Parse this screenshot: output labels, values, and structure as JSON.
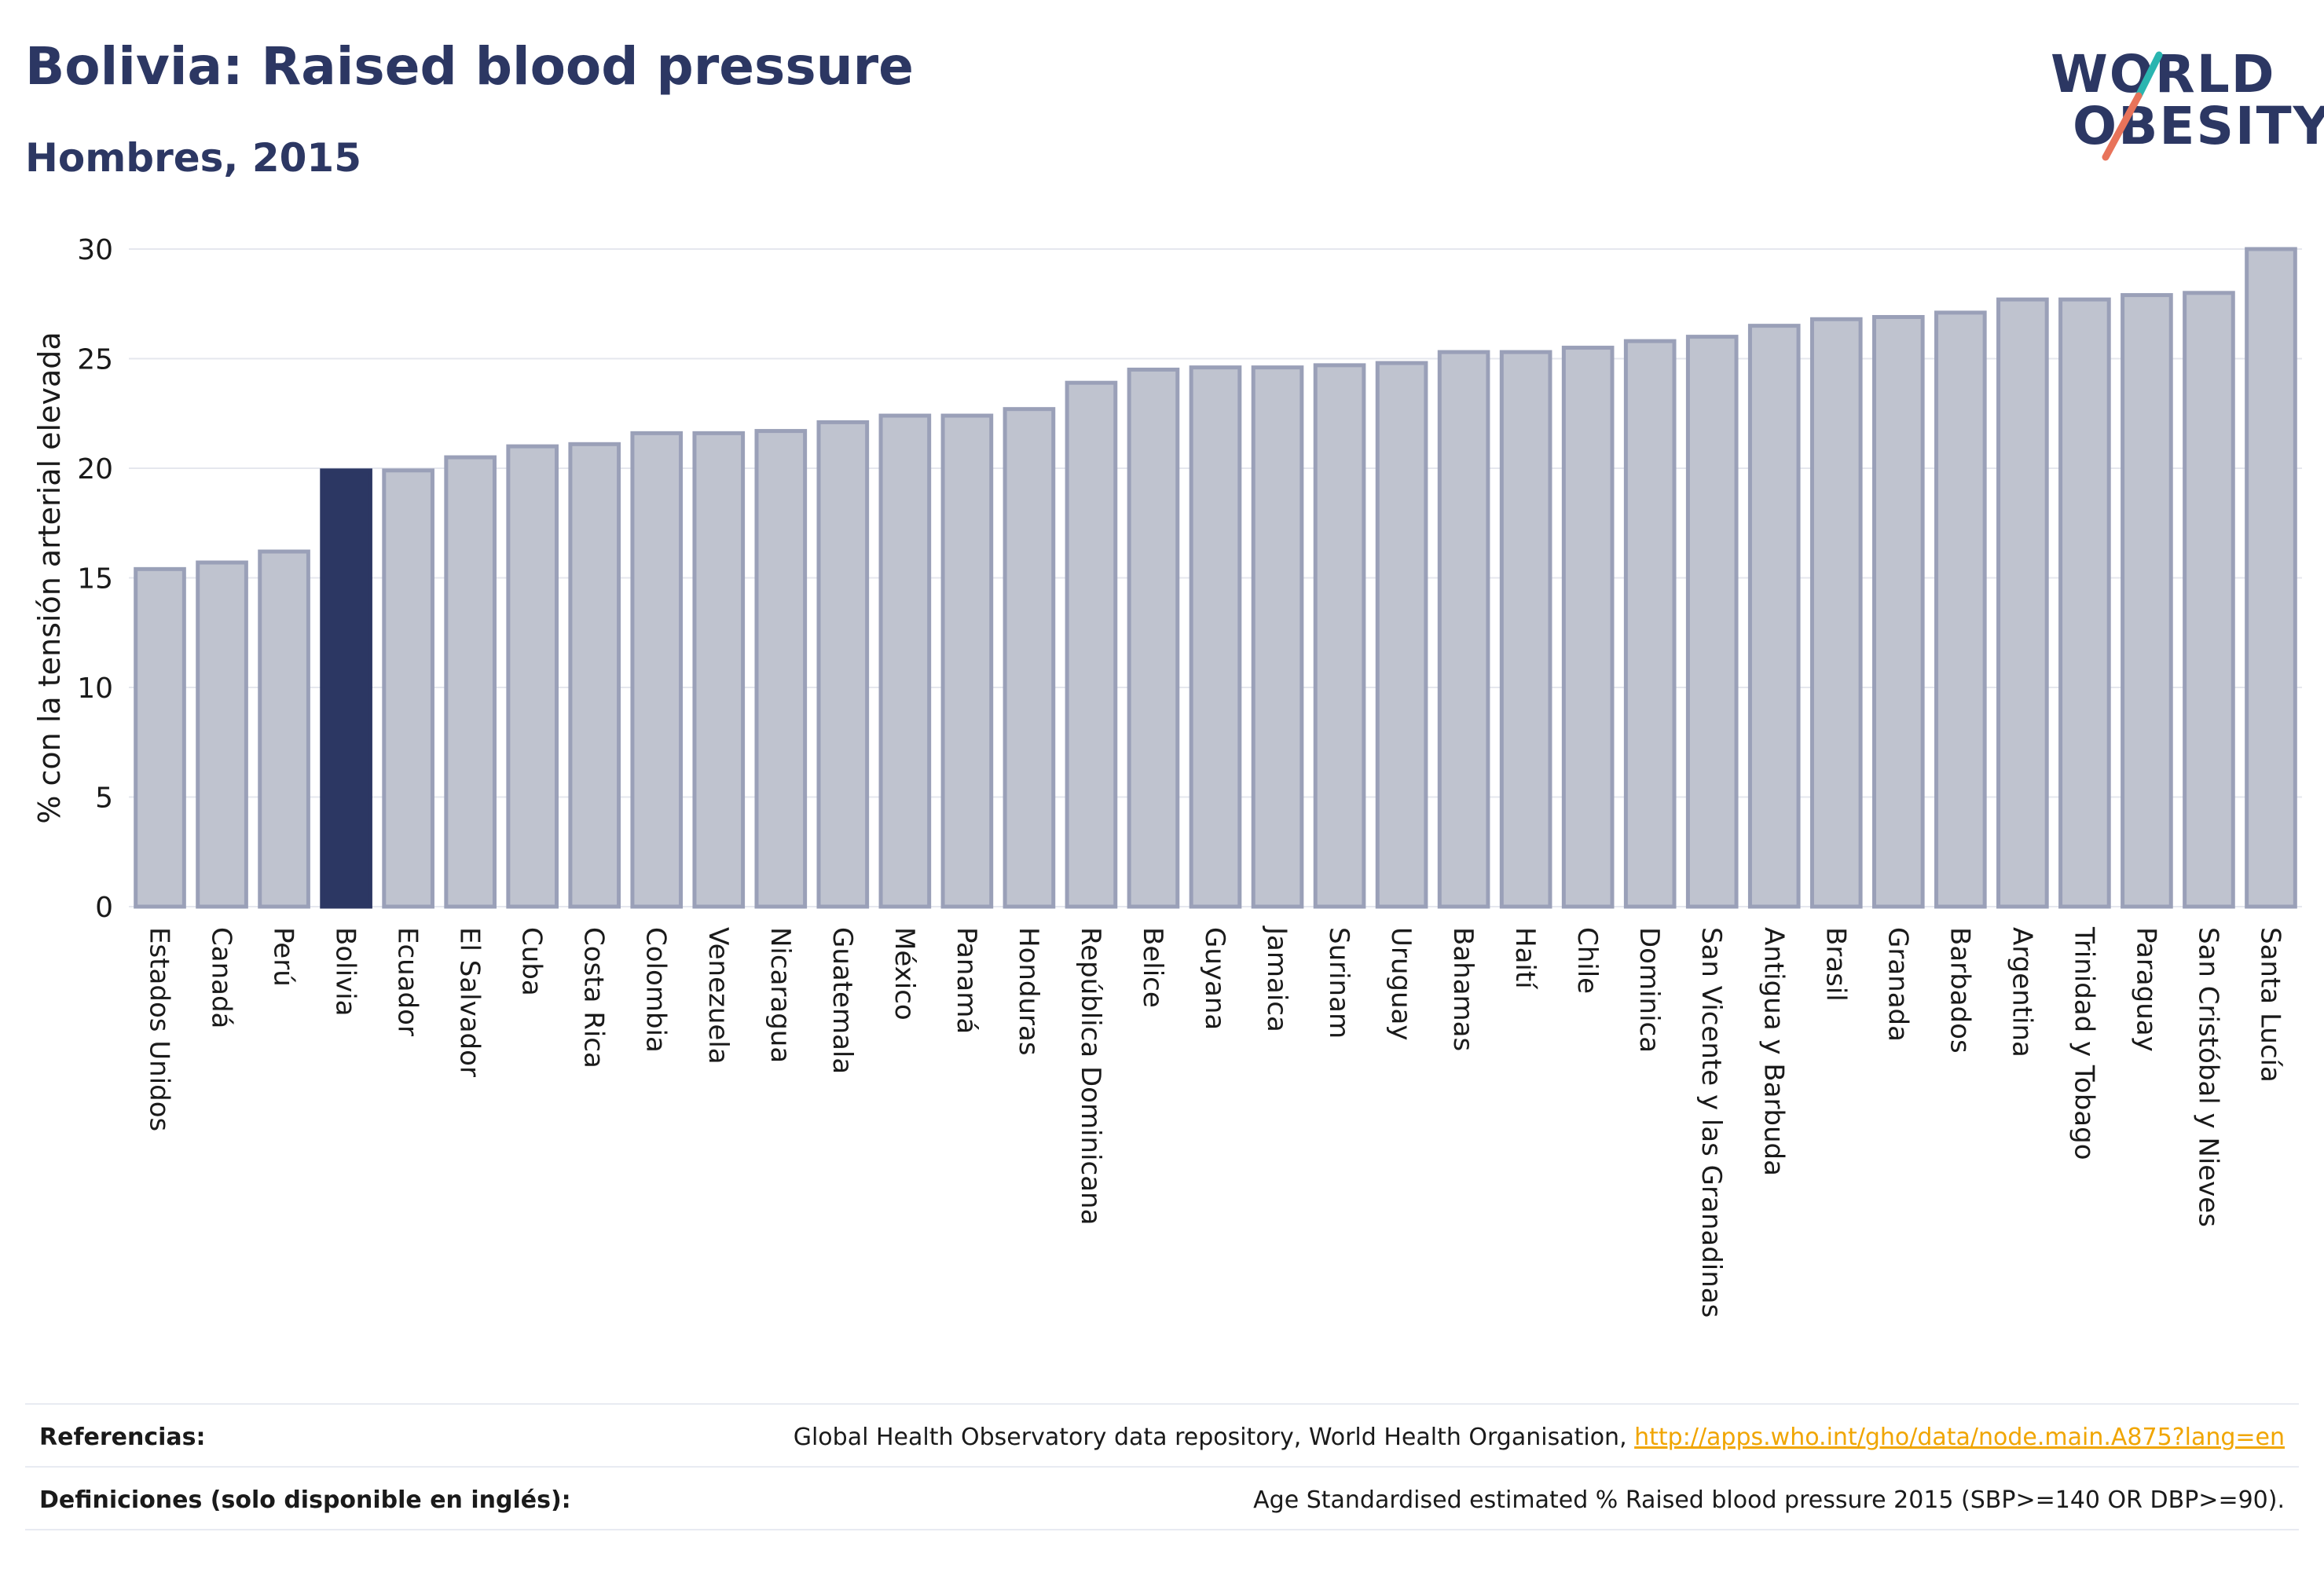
{
  "header": {
    "title": "Bolivia: Raised blood pressure",
    "subtitle": "Hombres, 2015"
  },
  "logo": {
    "line1": "WORLD",
    "line2": "OBESITY",
    "colors": {
      "text": "#2c3763",
      "slash_top": "#2ab5b0",
      "slash_bottom": "#e8735a"
    }
  },
  "colors": {
    "bar_fill": "#bfc3cf",
    "bar_stroke": "#9aa0b8",
    "highlight_fill": "#2c3763",
    "grid": "#e5e7ee",
    "axis_text": "#1a1a1a"
  },
  "chart_data": {
    "type": "bar",
    "title": "",
    "xlabel": "",
    "ylabel": "% con la tensión arterial elevada",
    "ylim": [
      0,
      30
    ],
    "yticks": [
      0,
      5,
      10,
      15,
      20,
      25,
      30
    ],
    "grid": true,
    "highlight": "Bolivia",
    "categories": [
      "Estados Unidos",
      "Canadá",
      "Perú",
      "Bolivia",
      "Ecuador",
      "El Salvador",
      "Cuba",
      "Costa Rica",
      "Colombia",
      "Venezuela",
      "Nicaragua",
      "Guatemala",
      "México",
      "Panamá",
      "Honduras",
      "República Dominicana",
      "Belice",
      "Guyana",
      "Jamaica",
      "Surinam",
      "Uruguay",
      "Bahamas",
      "Haití",
      "Chile",
      "Dominica",
      "San Vicente y las Granadinas",
      "Antigua y Barbuda",
      "Brasil",
      "Granada",
      "Barbados",
      "Argentina",
      "Trinidad y Tobago",
      "Paraguay",
      "San Cristóbal y Nieves",
      "Santa Lucía"
    ],
    "values": [
      15.4,
      15.7,
      16.2,
      19.9,
      19.9,
      20.5,
      21.0,
      21.1,
      21.6,
      21.6,
      21.7,
      22.1,
      22.4,
      22.4,
      22.7,
      23.9,
      24.5,
      24.6,
      24.6,
      24.7,
      24.8,
      25.3,
      25.3,
      25.5,
      25.8,
      26.0,
      26.5,
      26.8,
      26.9,
      27.1,
      27.7,
      27.7,
      27.9,
      28.0,
      30.0
    ]
  },
  "footer": {
    "references_label": "Referencias:",
    "references_text": "Global Health Observatory data repository, World Health Organisation, ",
    "references_link": "http://apps.who.int/gho/data/node.main.A875?lang=en",
    "definitions_label": "Definiciones (solo disponible en inglés):",
    "definitions_text": "Age Standardised estimated % Raised blood pressure 2015 (SBP>=140 OR DBP>=90)."
  }
}
